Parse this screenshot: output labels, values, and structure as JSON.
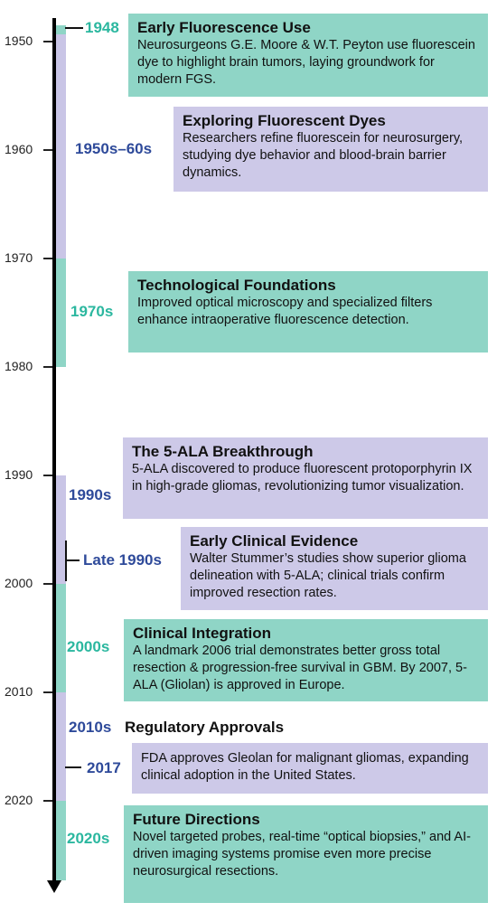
{
  "axis": {
    "years": [
      "1950",
      "1960",
      "1970",
      "1980",
      "1990",
      "2000",
      "2010",
      "2020"
    ]
  },
  "events": [
    {
      "label": "1948",
      "title": "Early Fluorescence Use",
      "body": "Neurosurgeons G.E. Moore & W.T. Peyton use fluorescein dye to highlight brain tumors, laying groundwork for modern FGS."
    },
    {
      "label": "1950s–60s",
      "title": "Exploring Fluorescent Dyes",
      "body": "Researchers refine fluorescein for neurosurgery, studying dye behavior and blood-brain barrier dynamics."
    },
    {
      "label": "1970s",
      "title": "Technological Foundations",
      "body": "Improved optical microscopy and specialized filters enhance intraoperative fluorescence detection."
    },
    {
      "label": "1990s",
      "title": "The 5-ALA Breakthrough",
      "body": "5-ALA discovered to produce fluorescent protoporphyrin IX in high-grade gliomas, revolutionizing tumor visualization."
    },
    {
      "label": "Late 1990s",
      "title": "Early Clinical Evidence",
      "body": "Walter Stummer’s studies show superior glioma delineation with 5-ALA; clinical trials confirm improved resection rates."
    },
    {
      "label": "2000s",
      "title": "Clinical Integration",
      "body": "A landmark 2006 trial demonstrates better gross total resection & progression-free survival in GBM. By 2007, 5-ALA (Gliolan) is approved in Europe."
    },
    {
      "label": "2010s",
      "title": "Regulatory Approvals"
    },
    {
      "label": "2017",
      "body": "FDA approves Gleolan for malignant gliomas, expanding clinical adoption in the United States."
    },
    {
      "label": "2020s",
      "title": "Future Directions",
      "body": "Novel targeted probes, real-time “optical biopsies,” and AI-driven imaging systems promise even more precise neurosurgical resections."
    }
  ],
  "colors": {
    "teal": "#8fd5c6",
    "lavender": "#cdc9e8",
    "teal_text": "#2bb79f",
    "blue_text": "#2e4a9a"
  }
}
